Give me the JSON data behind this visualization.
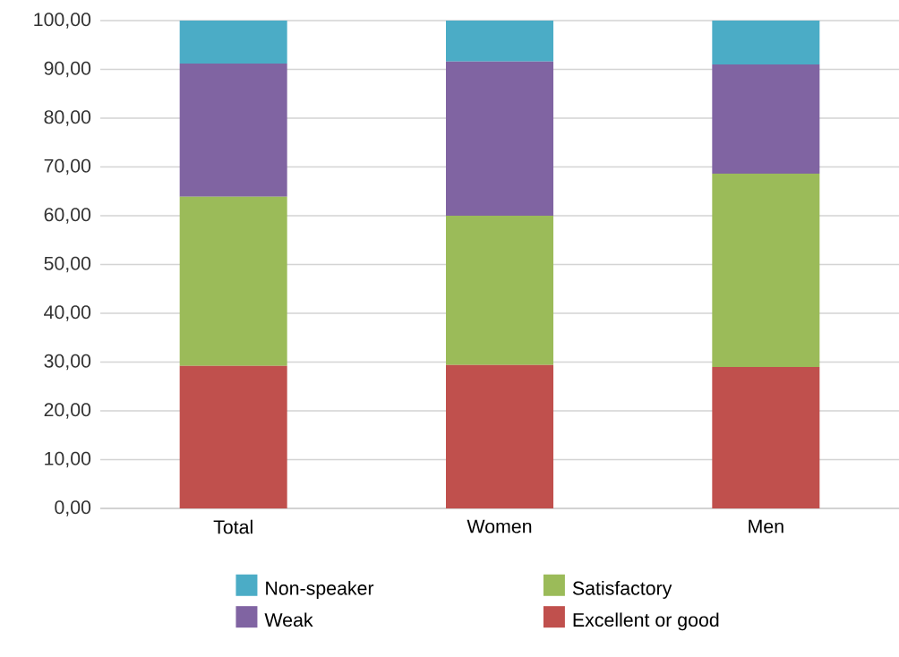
{
  "chart_data": {
    "type": "bar",
    "stacked": true,
    "categories": [
      "Total",
      "Women",
      "Men"
    ],
    "series": [
      {
        "name": "Excellent or good",
        "color": "#c0504d",
        "values": [
          29.2,
          29.4,
          29.0
        ]
      },
      {
        "name": "Satisfactory",
        "color": "#9bbb59",
        "values": [
          34.7,
          30.6,
          39.6
        ]
      },
      {
        "name": "Weak",
        "color": "#8064a2",
        "values": [
          27.3,
          31.6,
          22.4
        ]
      },
      {
        "name": "Non-speaker",
        "color": "#4bacc6",
        "values": [
          8.8,
          8.4,
          9.0
        ]
      }
    ],
    "ylim": [
      0,
      100
    ],
    "yticks": [
      {
        "value": 0,
        "label": "0,00"
      },
      {
        "value": 10,
        "label": "10,00"
      },
      {
        "value": 20,
        "label": "20,00"
      },
      {
        "value": 30,
        "label": "30,00"
      },
      {
        "value": 40,
        "label": "40,00"
      },
      {
        "value": 50,
        "label": "50,00"
      },
      {
        "value": 60,
        "label": "60,00"
      },
      {
        "value": 70,
        "label": "70,00"
      },
      {
        "value": 80,
        "label": "80,00"
      },
      {
        "value": 90,
        "label": "90,00"
      },
      {
        "value": 100,
        "label": "100,00"
      }
    ],
    "grid": "y",
    "legend": "bottom"
  }
}
